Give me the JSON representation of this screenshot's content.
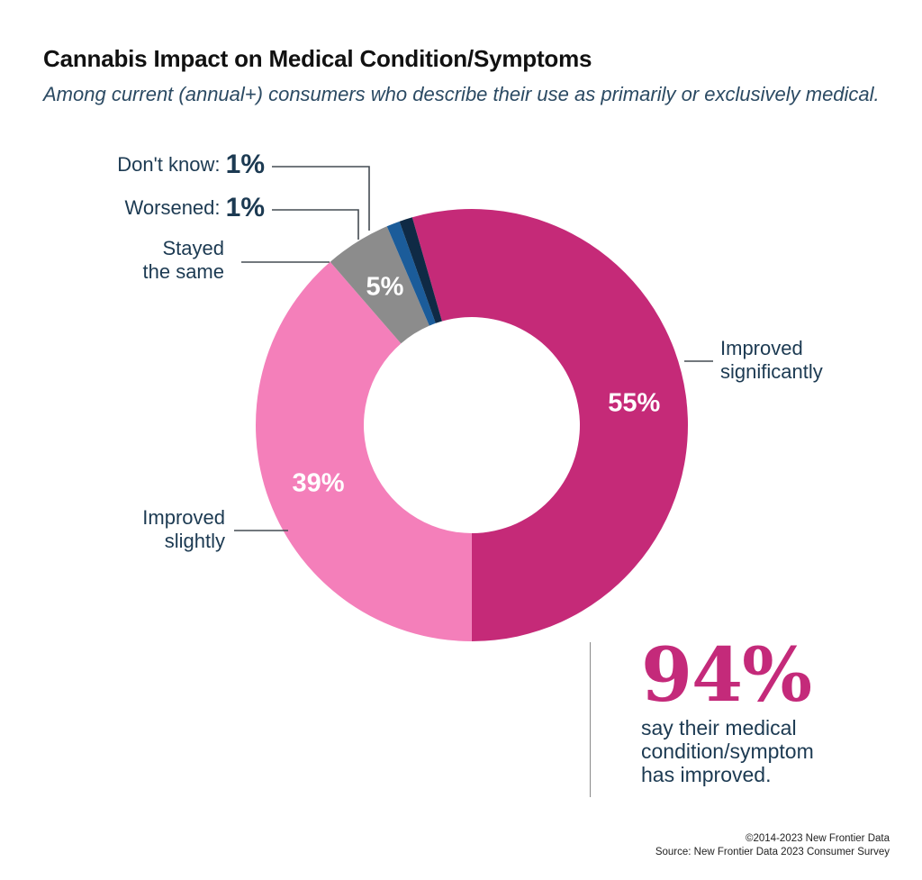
{
  "title": "Cannabis Impact on Medical Condition/Symptoms",
  "subtitle": "Among current (annual+) consumers who describe their use as primarily or exclusively medical.",
  "chart_data": {
    "type": "pie",
    "donut": true,
    "slices": [
      {
        "label": "Improved significantly",
        "value": 55,
        "display": "55%",
        "color": "#c52a78"
      },
      {
        "label": "Improved slightly",
        "value": 39,
        "display": "39%",
        "color": "#f47fba"
      },
      {
        "label": "Stayed the same",
        "value": 5,
        "display": "5%",
        "color": "#8c8c8c"
      },
      {
        "label": "Worsened:",
        "value": 1,
        "display": "1%",
        "color": "#1b5c9a"
      },
      {
        "label": "Don't know:",
        "value": 1,
        "display": "1%",
        "color": "#0f2a45"
      }
    ]
  },
  "labels": {
    "dont_know": "Don't know:",
    "dont_know_pct": "1%",
    "worsened": "Worsened:",
    "worsened_pct": "1%",
    "stayed_line1": "Stayed",
    "stayed_line2": "the same",
    "improved_sig_line1": "Improved",
    "improved_sig_line2": "significantly",
    "improved_slight_line1": "Improved",
    "improved_slight_line2": "slightly"
  },
  "callout": {
    "value": "94%",
    "line1": "say their medical",
    "line2": "condition/symptom",
    "line3": "has improved."
  },
  "footer": {
    "copyright": "©2014-2023  New Frontier Data",
    "source": "Source: New Frontier Data 2023 Consumer Survey"
  }
}
